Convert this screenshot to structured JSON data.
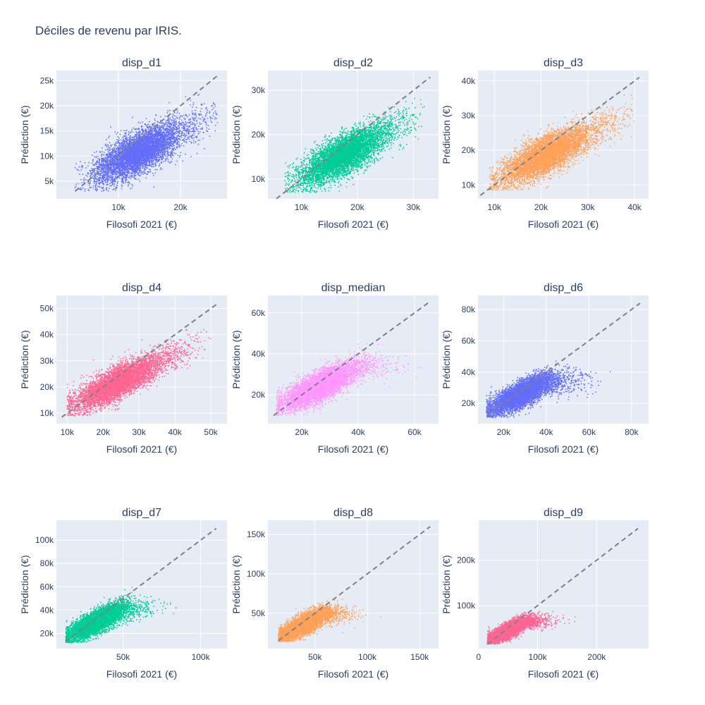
{
  "title": "Déciles de revenu par IRIS.",
  "colors": {
    "plot_bg": "#e5ecf6",
    "grid": "#ffffff",
    "text": "#2a3f5f",
    "identity_line": "#808080"
  },
  "chart_data": [
    {
      "type": "scatter",
      "title": "disp_d1",
      "xlabel": "Filosofi 2021 (€)",
      "ylabel": "Prédiction (€)",
      "color": "#636efa",
      "xlim": [
        0,
        27500
      ],
      "ylim": [
        1500,
        27000
      ],
      "xticks": [
        {
          "v": 10000,
          "label": "10k"
        },
        {
          "v": 20000,
          "label": "20k"
        }
      ],
      "yticks": [
        {
          "v": 5000,
          "label": "5k"
        },
        {
          "v": 10000,
          "label": "10k"
        },
        {
          "v": 15000,
          "label": "15k"
        },
        {
          "v": 20000,
          "label": "20k"
        },
        {
          "v": 25000,
          "label": "25k"
        }
      ],
      "identity_line": [
        3000,
        26000
      ],
      "points_summary": {
        "n_points": 6000,
        "x_center": 12500,
        "x_spread": 3200,
        "x_min": 3000,
        "x_max": 26000,
        "slope": 0.6,
        "intercept": 2800,
        "y_noise": 2000,
        "y_min": 3000,
        "y_max": 26000,
        "sat_x": 0,
        "cap_y": 0
      }
    },
    {
      "type": "scatter",
      "title": "disp_d2",
      "xlabel": "Filosofi 2021 (€)",
      "ylabel": "Prédiction (€)",
      "color": "#00cc96",
      "xlim": [
        4000,
        34500
      ],
      "ylim": [
        5500,
        34500
      ],
      "xticks": [
        {
          "v": 10000,
          "label": "10k"
        },
        {
          "v": 20000,
          "label": "20k"
        },
        {
          "v": 30000,
          "label": "30k"
        }
      ],
      "yticks": [
        {
          "v": 10000,
          "label": "10k"
        },
        {
          "v": 20000,
          "label": "20k"
        },
        {
          "v": 30000,
          "label": "30k"
        }
      ],
      "identity_line": [
        5500,
        33000
      ],
      "points_summary": {
        "n_points": 6000,
        "x_center": 16500,
        "x_spread": 3600,
        "x_min": 7000,
        "x_max": 32000,
        "slope": 0.65,
        "intercept": 4000,
        "y_noise": 2200,
        "y_min": 7000,
        "y_max": 33000,
        "sat_x": 0,
        "cap_y": 0
      }
    },
    {
      "type": "scatter",
      "title": "disp_d3",
      "xlabel": "Filosofi 2021 (€)",
      "ylabel": "Prédiction (€)",
      "color": "#ffa15a",
      "xlim": [
        6500,
        43000
      ],
      "ylim": [
        6000,
        43000
      ],
      "xticks": [
        {
          "v": 10000,
          "label": "10k"
        },
        {
          "v": 20000,
          "label": "20k"
        },
        {
          "v": 30000,
          "label": "30k"
        },
        {
          "v": 40000,
          "label": "40k"
        }
      ],
      "yticks": [
        {
          "v": 10000,
          "label": "10k"
        },
        {
          "v": 20000,
          "label": "20k"
        },
        {
          "v": 30000,
          "label": "30k"
        },
        {
          "v": 40000,
          "label": "40k"
        }
      ],
      "identity_line": [
        7000,
        41000
      ],
      "points_summary": {
        "n_points": 6000,
        "x_center": 20000,
        "x_spread": 4500,
        "x_min": 9000,
        "x_max": 40000,
        "slope": 0.65,
        "intercept": 5000,
        "y_noise": 2700,
        "y_min": 8500,
        "y_max": 38000,
        "sat_x": 0,
        "cap_y": 0
      }
    },
    {
      "type": "scatter",
      "title": "disp_d4",
      "xlabel": "Filosofi 2021 (€)",
      "ylabel": "Prédiction (€)",
      "color": "#ff6692",
      "xlim": [
        7000,
        54500
      ],
      "ylim": [
        6000,
        55000
      ],
      "xticks": [
        {
          "v": 10000,
          "label": "10k"
        },
        {
          "v": 20000,
          "label": "20k"
        },
        {
          "v": 30000,
          "label": "30k"
        },
        {
          "v": 40000,
          "label": "40k"
        },
        {
          "v": 50000,
          "label": "50k"
        }
      ],
      "yticks": [
        {
          "v": 10000,
          "label": "10k"
        },
        {
          "v": 20000,
          "label": "20k"
        },
        {
          "v": 30000,
          "label": "30k"
        },
        {
          "v": 40000,
          "label": "40k"
        },
        {
          "v": 50000,
          "label": "50k"
        }
      ],
      "identity_line": [
        8500,
        52000
      ],
      "points_summary": {
        "n_points": 6000,
        "x_center": 23000,
        "x_spread": 5600,
        "x_min": 10000,
        "x_max": 50000,
        "slope": 0.65,
        "intercept": 6000,
        "y_noise": 3000,
        "y_min": 9000,
        "y_max": 44000,
        "sat_x": 0,
        "cap_y": 0
      }
    },
    {
      "type": "scatter",
      "title": "disp_median",
      "xlabel": "Filosofi 2021 (€)",
      "ylabel": "Prédiction (€)",
      "color": "#ff97ff",
      "xlim": [
        8000,
        68500
      ],
      "ylim": [
        6000,
        68500
      ],
      "xticks": [
        {
          "v": 20000,
          "label": "20k"
        },
        {
          "v": 40000,
          "label": "40k"
        },
        {
          "v": 60000,
          "label": "60k"
        }
      ],
      "yticks": [
        {
          "v": 20000,
          "label": "20k"
        },
        {
          "v": 40000,
          "label": "40k"
        },
        {
          "v": 60000,
          "label": "60k"
        }
      ],
      "identity_line": [
        10000,
        65000
      ],
      "points_summary": {
        "n_points": 6000,
        "x_center": 25000,
        "x_spread": 6200,
        "x_min": 11000,
        "x_max": 66000,
        "slope": 0.65,
        "intercept": 7000,
        "y_noise": 3500,
        "y_min": 10000,
        "y_max": 50000,
        "sat_x": 42000,
        "cap_y": 38000
      }
    },
    {
      "type": "scatter",
      "title": "disp_d6",
      "xlabel": "Filosofi 2021 (€)",
      "ylabel": "Prédiction (€)",
      "color": "#636efa",
      "xlim": [
        8000,
        88000
      ],
      "ylim": [
        7000,
        89000
      ],
      "xticks": [
        {
          "v": 20000,
          "label": "20k"
        },
        {
          "v": 40000,
          "label": "40k"
        },
        {
          "v": 60000,
          "label": "60k"
        },
        {
          "v": 80000,
          "label": "80k"
        }
      ],
      "yticks": [
        {
          "v": 20000,
          "label": "20k"
        },
        {
          "v": 40000,
          "label": "40k"
        },
        {
          "v": 60000,
          "label": "60k"
        },
        {
          "v": 80000,
          "label": "80k"
        }
      ],
      "identity_line": [
        12000,
        84000
      ],
      "points_summary": {
        "n_points": 6000,
        "x_center": 27000,
        "x_spread": 7000,
        "x_min": 12000,
        "x_max": 84000,
        "slope": 0.65,
        "intercept": 7500,
        "y_noise": 4000,
        "y_min": 11000,
        "y_max": 58000,
        "sat_x": 40000,
        "cap_y": 43000
      }
    },
    {
      "type": "scatter",
      "title": "disp_d7",
      "xlabel": "Filosofi 2021 (€)",
      "ylabel": "Prédiction (€)",
      "color": "#00cc96",
      "xlim": [
        7000,
        117000
      ],
      "ylim": [
        7000,
        117000
      ],
      "xticks": [
        {
          "v": 50000,
          "label": "50k"
        },
        {
          "v": 100000,
          "label": "100k"
        }
      ],
      "yticks": [
        {
          "v": 20000,
          "label": "20k"
        },
        {
          "v": 40000,
          "label": "40k"
        },
        {
          "v": 60000,
          "label": "60k"
        },
        {
          "v": 80000,
          "label": "80k"
        },
        {
          "v": 100000,
          "label": "100k"
        }
      ],
      "identity_line": [
        13000,
        110000
      ],
      "points_summary": {
        "n_points": 6000,
        "x_center": 31000,
        "x_spread": 8500,
        "x_min": 13000,
        "x_max": 110000,
        "slope": 0.65,
        "intercept": 8500,
        "y_noise": 4800,
        "y_min": 12000,
        "y_max": 65000,
        "sat_x": 50000,
        "cap_y": 50000
      }
    },
    {
      "type": "scatter",
      "title": "disp_d8",
      "xlabel": "Filosofi 2021 (€)",
      "ylabel": "Prédiction (€)",
      "color": "#ffa15a",
      "xlim": [
        5000,
        168000
      ],
      "ylim": [
        5000,
        168000
      ],
      "xticks": [
        {
          "v": 50000,
          "label": "50k"
        },
        {
          "v": 100000,
          "label": "100k"
        },
        {
          "v": 150000,
          "label": "150k"
        }
      ],
      "yticks": [
        {
          "v": 50000,
          "label": "50k"
        },
        {
          "v": 100000,
          "label": "100k"
        },
        {
          "v": 150000,
          "label": "150k"
        }
      ],
      "identity_line": [
        15000,
        160000
      ],
      "points_summary": {
        "n_points": 6000,
        "x_center": 37000,
        "x_spread": 11000,
        "x_min": 15000,
        "x_max": 160000,
        "slope": 0.65,
        "intercept": 10000,
        "y_noise": 6000,
        "y_min": 14000,
        "y_max": 82000,
        "sat_x": 60000,
        "cap_y": 60000
      }
    },
    {
      "type": "scatter",
      "title": "disp_d9",
      "xlabel": "Filosofi 2021 (€)",
      "ylabel": "Prédiction (€)",
      "color": "#ff6692",
      "xlim": [
        -1000,
        288000
      ],
      "ylim": [
        5000,
        288000
      ],
      "xticks": [
        {
          "v": 0,
          "label": "0"
        },
        {
          "v": 100000,
          "label": "100k"
        },
        {
          "v": 200000,
          "label": "200k"
        }
      ],
      "yticks": [
        {
          "v": 100000,
          "label": "100k"
        },
        {
          "v": 200000,
          "label": "200k"
        }
      ],
      "identity_line": [
        15000,
        270000
      ],
      "points_summary": {
        "n_points": 6000,
        "x_center": 48000,
        "x_spread": 17000,
        "x_min": 15000,
        "x_max": 270000,
        "slope": 0.65,
        "intercept": 12000,
        "y_noise": 8000,
        "y_min": 15000,
        "y_max": 95000,
        "sat_x": 80000,
        "cap_y": 78000
      }
    }
  ]
}
